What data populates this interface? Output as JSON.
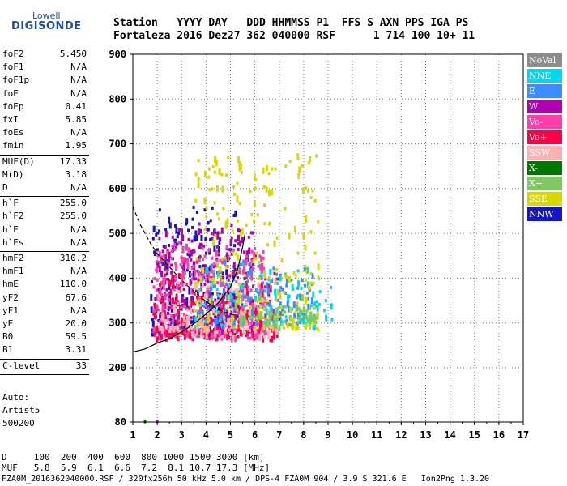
{
  "logo": {
    "top": "Lowell",
    "main": "DIGISONDE"
  },
  "header": {
    "labels_line": "Station   YYYY DAY   DDD HHMMSS P1  FFS S AXN PPS IGA PS",
    "values_line": "Fortaleza 2016 Dez27 362 040000 RSF      1 714 100 10+ 11"
  },
  "params": [
    {
      "label": "foF2",
      "value": "5.450"
    },
    {
      "label": "foF1",
      "value": "N/A"
    },
    {
      "label": "foF1p",
      "value": "N/A"
    },
    {
      "label": "foE",
      "value": "N/A"
    },
    {
      "label": "foEp",
      "value": "0.41"
    },
    {
      "label": "fxI",
      "value": "5.85"
    },
    {
      "label": "foEs",
      "value": "N/A"
    },
    {
      "label": "fmin",
      "value": "1.95"
    },
    {
      "label": "MUF(D)",
      "value": "17.33"
    },
    {
      "label": "M(D)",
      "value": "3.18"
    },
    {
      "label": "D",
      "value": "N/A"
    },
    {
      "label": "h`F",
      "value": "255.0"
    },
    {
      "label": "h`F2",
      "value": "255.0"
    },
    {
      "label": "h`E",
      "value": "N/A"
    },
    {
      "label": "h`Es",
      "value": "N/A"
    },
    {
      "label": "hmF2",
      "value": "310.2"
    },
    {
      "label": "hmF1",
      "value": "N/A"
    },
    {
      "label": "hmE",
      "value": "110.0"
    },
    {
      "label": "yF2",
      "value": "67.6"
    },
    {
      "label": "yF1",
      "value": "N/A"
    },
    {
      "label": "yE",
      "value": "20.0"
    },
    {
      "label": "B0",
      "value": "59.5"
    },
    {
      "label": "B1",
      "value": "3.31"
    },
    {
      "label": "C-level",
      "value": "33"
    }
  ],
  "auto": {
    "line1": "Auto:",
    "line2": "Artist5",
    "line3": "500200"
  },
  "legend": [
    {
      "label": "NoVal",
      "color": "#8c8c8c"
    },
    {
      "label": "NNE",
      "color": "#00d8f0"
    },
    {
      "label": "E",
      "color": "#3c8cff"
    },
    {
      "label": "W",
      "color": "#b000b0"
    },
    {
      "label": "Vo-",
      "color": "#ff3caa"
    },
    {
      "label": "Vo+",
      "color": "#ff0044"
    },
    {
      "label": "SSW",
      "color": "#ffb0b0"
    },
    {
      "label": "X-",
      "color": "#007800"
    },
    {
      "label": "X+",
      "color": "#80c860"
    },
    {
      "label": "SSE",
      "color": "#d8d800"
    },
    {
      "label": "NNW",
      "color": "#1414c8"
    }
  ],
  "footer": {
    "d_line": "D     100  200  400  600  800 1000 1500 3000 [km]",
    "muf_line": "MUF   5.8  5.9  6.1  6.6  7.2  8.1 10.7 17.3 [MHz]",
    "file_line": "FZA0M_2016362040000.RSF / 320fx256h 50 kHz 5.0 km / DPS-4 FZA0M 904 / 3.9 S 321.6 E   Ion2Png 1.3.20"
  },
  "chart_data": {
    "type": "scatter",
    "x_ticks": [
      "1",
      "2",
      "3",
      "4",
      "5",
      "6",
      "7",
      "8",
      "9",
      "10",
      "11",
      "12",
      "13",
      "14",
      "15",
      "16",
      "17"
    ],
    "y_ticks": [
      "900",
      "800",
      "700",
      "600",
      "500",
      "400",
      "300",
      "200",
      "80"
    ],
    "xlim": [
      1,
      17
    ],
    "ylim": [
      80,
      900
    ],
    "grid": true,
    "y_scale": "nonlinear (200–900 linear, compressed 80–200)",
    "clusters": [
      {
        "color": "#1414c8",
        "x": [
          1.7,
          5.2
        ],
        "y": [
          280,
          560
        ],
        "n": 260
      },
      {
        "color": "#b000b0",
        "x": [
          1.8,
          6.0
        ],
        "y": [
          280,
          520
        ],
        "n": 320
      },
      {
        "color": "#ff3caa",
        "x": [
          1.8,
          6.5
        ],
        "y": [
          270,
          480
        ],
        "n": 320
      },
      {
        "color": "#ff0044",
        "x": [
          1.8,
          7.0
        ],
        "y": [
          270,
          420
        ],
        "n": 200
      },
      {
        "color": "#3c8cff",
        "x": [
          3.5,
          8.5
        ],
        "y": [
          300,
          440
        ],
        "n": 150
      },
      {
        "color": "#00d8f0",
        "x": [
          3.5,
          9.2
        ],
        "y": [
          300,
          430
        ],
        "n": 120
      },
      {
        "color": "#d8d800",
        "x": [
          3.5,
          8.6
        ],
        "y": [
          290,
          680
        ],
        "n": 240
      },
      {
        "color": "#ffb0b0",
        "x": [
          2.0,
          7.0
        ],
        "y": [
          280,
          400
        ],
        "n": 120
      },
      {
        "color": "#80c860",
        "x": [
          5.0,
          8.5
        ],
        "y": [
          300,
          360
        ],
        "n": 60
      }
    ],
    "o_trace": [
      [
        1.0,
        235
      ],
      [
        1.5,
        242
      ],
      [
        2.0,
        255
      ],
      [
        2.5,
        265
      ],
      [
        3.0,
        280
      ],
      [
        3.5,
        298
      ],
      [
        4.0,
        320
      ],
      [
        4.5,
        345
      ],
      [
        5.0,
        380
      ],
      [
        5.3,
        420
      ],
      [
        5.5,
        470
      ],
      [
        5.6,
        500
      ]
    ],
    "x_trace": [
      [
        1.0,
        560
      ],
      [
        1.3,
        520
      ],
      [
        1.7,
        480
      ],
      [
        2.0,
        455
      ],
      [
        2.5,
        425
      ],
      [
        3.0,
        395
      ],
      [
        3.5,
        370
      ],
      [
        4.0,
        348
      ],
      [
        4.5,
        330
      ],
      [
        5.0,
        320
      ],
      [
        5.3,
        315
      ]
    ]
  }
}
